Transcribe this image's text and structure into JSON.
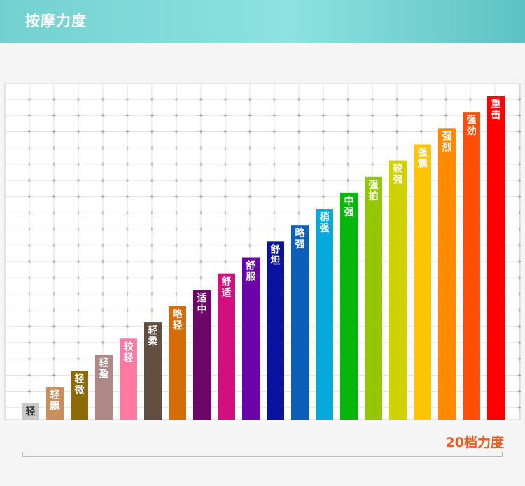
{
  "header": {
    "title": "按摩力度"
  },
  "footer": {
    "label": "20档力度"
  },
  "chart_data": {
    "type": "bar",
    "title": "",
    "xlabel": "",
    "ylabel": "",
    "ylim": [
      0,
      20
    ],
    "grid": true,
    "categories": [
      "轻",
      "轻飘",
      "轻微",
      "轻盈",
      "较轻",
      "轻柔",
      "略轻",
      "适中",
      "舒适",
      "舒服",
      "舒坦",
      "略强",
      "稍强",
      "中强",
      "强拍",
      "较强",
      "强震",
      "强烈",
      "强劲",
      "重击"
    ],
    "values": [
      1,
      2,
      3,
      4,
      5,
      6,
      7,
      8,
      9,
      10,
      11,
      12,
      13,
      14,
      15,
      16,
      17,
      18,
      19,
      20
    ],
    "colors": [
      "#c8c8c8",
      "#c98f5b",
      "#8c6a04",
      "#ad8887",
      "#ff79a3",
      "#614e41",
      "#d56d06",
      "#6c0668",
      "#d20f7f",
      "#6b05a7",
      "#0b12a0",
      "#0c5fb8",
      "#06a9dc",
      "#07b60a",
      "#94c703",
      "#d0d100",
      "#ffc600",
      "#ff8a00",
      "#ff4e05",
      "#ff0000"
    ],
    "label_colors": [
      "#333333",
      "#ffffff",
      "#ffffff",
      "#ffffff",
      "#ffffff",
      "#ffffff",
      "#ffffff",
      "#ffffff",
      "#ffffff",
      "#ffffff",
      "#ffffff",
      "#ffffff",
      "#ffffff",
      "#ffffff",
      "#ffffff",
      "#ffffff",
      "#ffffff",
      "#ffffff",
      "#ffffff",
      "#ffffff"
    ]
  }
}
